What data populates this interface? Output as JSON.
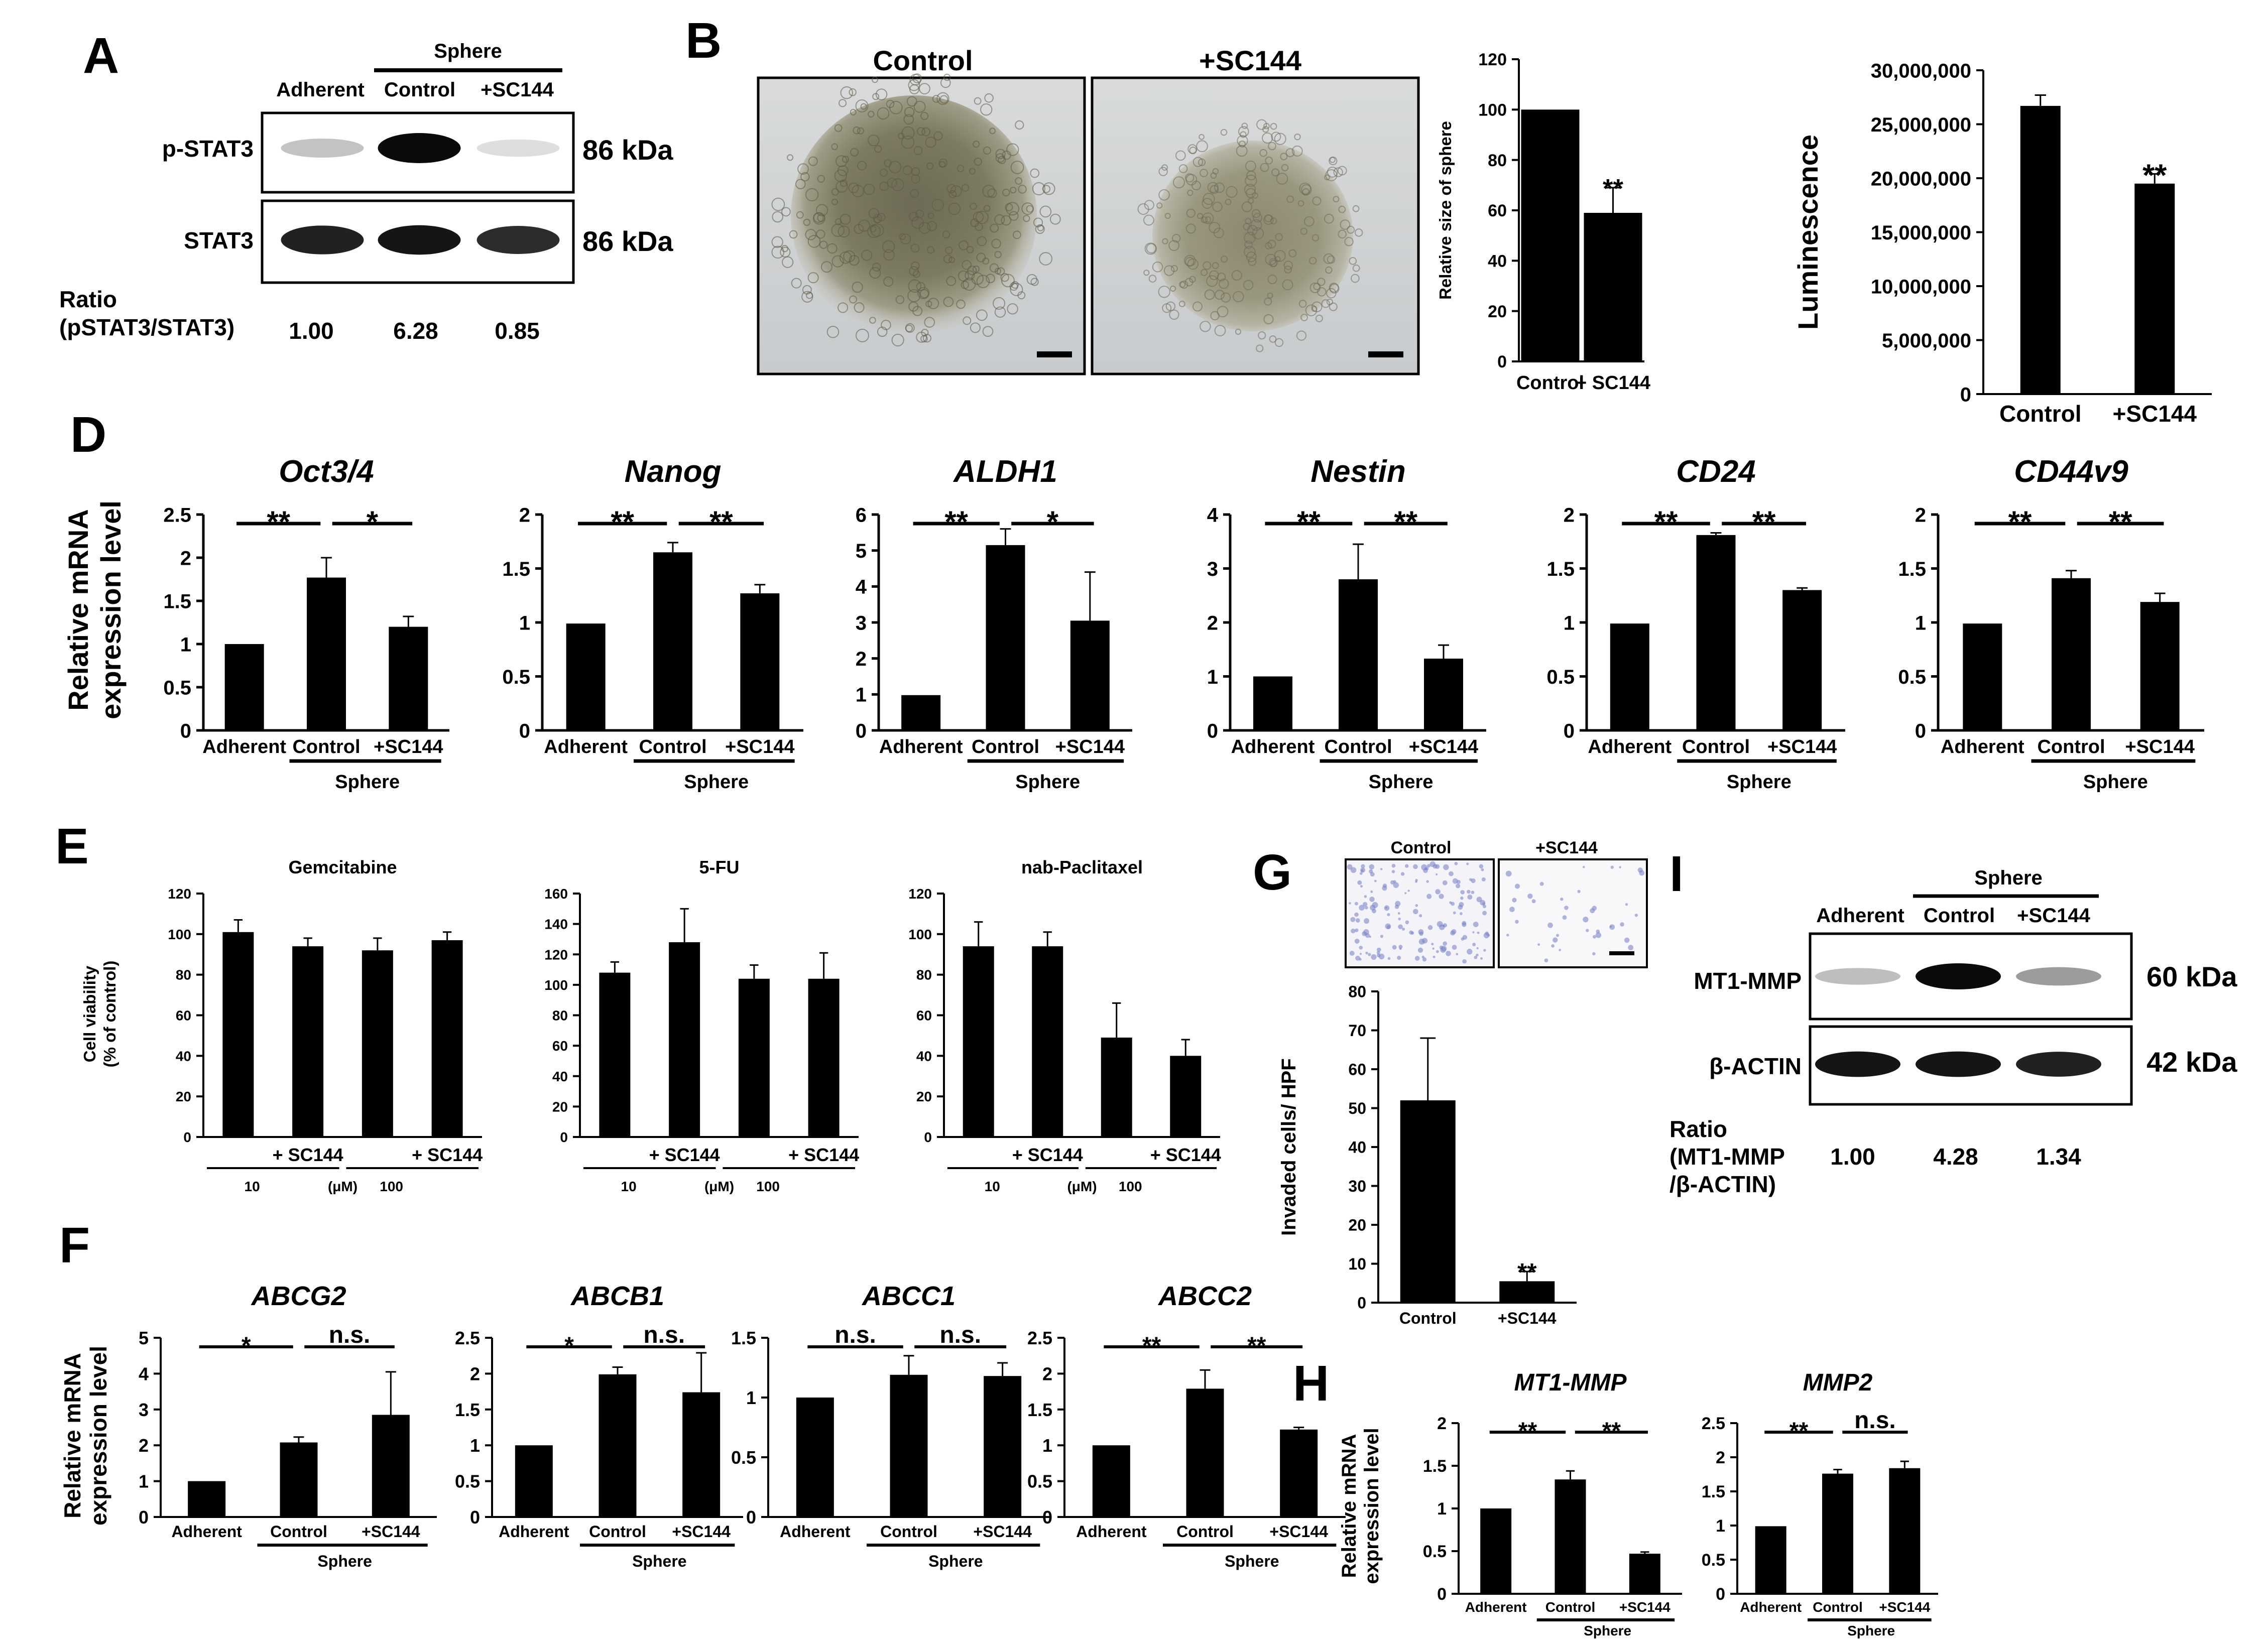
{
  "figure": {
    "panels": {
      "A": {
        "letter": "A",
        "group_label": "Sphere",
        "lanes": [
          "Adherent",
          "Control",
          "+SC144"
        ],
        "rows": [
          {
            "label": "p-STAT3",
            "size": "86 kDa",
            "intensity": [
              0.18,
              1.0,
              0.06
            ]
          },
          {
            "label": "STAT3",
            "size": "86 kDa",
            "intensity": [
              0.9,
              0.95,
              0.85
            ]
          }
        ],
        "ratio_label": "Ratio",
        "ratio_sub": "(pSTAT3/STAT3)",
        "ratio_values": [
          "1.00",
          "6.28",
          "0.85"
        ]
      },
      "B": {
        "letter": "B",
        "image_titles": [
          "Control",
          "+SC144"
        ],
        "image_names": [
          "control-sphere-micrograph",
          "sc144-sphere-micrograph"
        ]
      },
      "G": {
        "letter": "G",
        "image_titles": [
          "Control",
          "+SC144"
        ],
        "image_names": [
          "control-invasion-micrograph",
          "sc144-invasion-micrograph"
        ]
      },
      "I": {
        "letter": "I",
        "group_label": "Sphere",
        "lanes": [
          "Adherent",
          "Control",
          "+SC144"
        ],
        "rows": [
          {
            "label": "MT1-MMP",
            "size": "60 kDa",
            "intensity": [
              0.2,
              1.0,
              0.35
            ]
          },
          {
            "label": "β-ACTIN",
            "size": "42 kDa",
            "intensity": [
              0.95,
              0.95,
              0.9
            ]
          }
        ],
        "ratio_label": "Ratio",
        "ratio_sub1": "(MT1-MMP",
        "ratio_sub2": "/β-ACTIN)",
        "ratio_values": [
          "1.00",
          "4.28",
          "1.34"
        ]
      },
      "D": {
        "letter": "D",
        "ylabel1": "Relative mRNA",
        "ylabel2": "expression level"
      },
      "E": {
        "letter": "E",
        "ylabel1": "Cell viability",
        "ylabel2": "(% of control)"
      },
      "F": {
        "letter": "F",
        "ylabel1": "Relative mRNA",
        "ylabel2": "expression level"
      },
      "H": {
        "letter": "H",
        "ylabel1": "Relative mRNA",
        "ylabel2": "expression level"
      }
    }
  },
  "chart_data": [
    {
      "id": "B",
      "type": "bar",
      "categories": [
        "Control",
        "+ SC144"
      ],
      "values": [
        100,
        59
      ],
      "errors": [
        0,
        10
      ],
      "ylim": [
        0,
        120
      ],
      "yticks": [
        0,
        20,
        40,
        60,
        80,
        100,
        120
      ],
      "ylabel": "Relative size of sphere",
      "annotations": [
        "",
        "**"
      ]
    },
    {
      "id": "C",
      "type": "bar",
      "categories": [
        "Control",
        "+SC144"
      ],
      "values": [
        26700000,
        19500000
      ],
      "errors": [
        1000000,
        900000
      ],
      "ylim": [
        0,
        30000000
      ],
      "yticks": [
        "0",
        "5,000,000",
        "10,000,000",
        "15,000,000",
        "20,000,000",
        "25,000,000",
        "30,000,000"
      ],
      "ylabel": "Luminescence",
      "annotations": [
        "",
        "**"
      ]
    },
    {
      "id": "D1",
      "type": "bar",
      "title": "Oct3/4",
      "categories": [
        "Adherent",
        "Control",
        "+SC144"
      ],
      "group_label": "Sphere",
      "values": [
        1.0,
        1.77,
        1.2
      ],
      "errors": [
        0,
        0.23,
        0.12
      ],
      "ylim": [
        0,
        2.5
      ],
      "yticks": [
        "0",
        "0.5",
        "1",
        "1.5",
        "2",
        "2.5"
      ],
      "brackets": [
        {
          "from": 0,
          "to": 1,
          "label": "**"
        },
        {
          "from": 1,
          "to": 2,
          "label": "*"
        }
      ]
    },
    {
      "id": "D2",
      "type": "bar",
      "title": "Nanog",
      "categories": [
        "Adherent",
        "Control",
        "+SC144"
      ],
      "group_label": "Sphere",
      "values": [
        0.99,
        1.65,
        1.27
      ],
      "errors": [
        0,
        0.09,
        0.08
      ],
      "ylim": [
        0,
        2
      ],
      "yticks": [
        "0",
        "0.5",
        "1",
        "1.5",
        "2"
      ],
      "brackets": [
        {
          "from": 0,
          "to": 1,
          "label": "**"
        },
        {
          "from": 1,
          "to": 2,
          "label": "**"
        }
      ]
    },
    {
      "id": "D3",
      "type": "bar",
      "title": "ALDH1",
      "categories": [
        "Adherent",
        "Control",
        "+SC144"
      ],
      "group_label": "Sphere",
      "values": [
        0.98,
        5.15,
        3.05
      ],
      "errors": [
        0,
        0.45,
        1.35
      ],
      "ylim": [
        0,
        6
      ],
      "yticks": [
        "0",
        "1",
        "2",
        "3",
        "4",
        "5",
        "6"
      ],
      "brackets": [
        {
          "from": 0,
          "to": 1,
          "label": "**"
        },
        {
          "from": 1,
          "to": 2,
          "label": "*"
        }
      ]
    },
    {
      "id": "D4",
      "type": "bar",
      "title": "Nestin",
      "categories": [
        "Adherent",
        "Control",
        "+SC144"
      ],
      "group_label": "Sphere",
      "values": [
        1.0,
        2.8,
        1.33
      ],
      "errors": [
        0,
        0.65,
        0.25
      ],
      "ylim": [
        0,
        4
      ],
      "yticks": [
        "0",
        "1",
        "2",
        "3",
        "4"
      ],
      "brackets": [
        {
          "from": 0,
          "to": 1,
          "label": "**"
        },
        {
          "from": 1,
          "to": 2,
          "label": "**"
        }
      ]
    },
    {
      "id": "D5",
      "type": "bar",
      "title": "CD24",
      "categories": [
        "Adherent",
        "Control",
        "+SC144"
      ],
      "group_label": "Sphere",
      "values": [
        0.99,
        1.81,
        1.3
      ],
      "errors": [
        0,
        0.02,
        0.02
      ],
      "ylim": [
        0,
        2
      ],
      "yticks": [
        "0",
        "0.5",
        "1",
        "1.5",
        "2"
      ],
      "brackets": [
        {
          "from": 0,
          "to": 1,
          "label": "**"
        },
        {
          "from": 1,
          "to": 2,
          "label": "**"
        }
      ]
    },
    {
      "id": "D6",
      "type": "bar",
      "title": "CD44v9",
      "categories": [
        "Adherent",
        "Control",
        "+SC144"
      ],
      "group_label": "Sphere",
      "values": [
        0.99,
        1.41,
        1.19
      ],
      "errors": [
        0,
        0.07,
        0.08
      ],
      "ylim": [
        0,
        2
      ],
      "yticks": [
        "0",
        "0.5",
        "1",
        "1.5",
        "2"
      ],
      "brackets": [
        {
          "from": 0,
          "to": 1,
          "label": "**"
        },
        {
          "from": 1,
          "to": 2,
          "label": "**"
        }
      ]
    },
    {
      "id": "E1",
      "type": "bar",
      "title": "Gemcitabine",
      "categories": [
        "",
        "+ SC144",
        "",
        "+ SC144"
      ],
      "values": [
        101,
        94,
        92,
        97
      ],
      "errors": [
        6,
        4,
        6,
        4
      ],
      "ylim": [
        0,
        120
      ],
      "yticks": [
        0,
        20,
        40,
        60,
        80,
        100,
        120
      ],
      "doses": [
        "10",
        "100"
      ],
      "dose_unit": "(μM)"
    },
    {
      "id": "E2",
      "type": "bar",
      "title": "5-FU",
      "categories": [
        "",
        "+ SC144",
        "",
        "+ SC144"
      ],
      "values": [
        108,
        128,
        104,
        104
      ],
      "errors": [
        7,
        22,
        9,
        17
      ],
      "ylim": [
        0,
        160
      ],
      "yticks": [
        0,
        20,
        40,
        60,
        80,
        100,
        120,
        140,
        160
      ],
      "doses": [
        "10",
        "100"
      ],
      "dose_unit": "(μM)"
    },
    {
      "id": "E3",
      "type": "bar",
      "title": "nab-Paclitaxel",
      "categories": [
        "",
        "+ SC144",
        "",
        "+ SC144"
      ],
      "values": [
        94,
        94,
        49,
        40
      ],
      "errors": [
        12,
        7,
        17,
        8
      ],
      "ylim": [
        0,
        120
      ],
      "yticks": [
        0,
        20,
        40,
        60,
        80,
        100,
        120
      ],
      "doses": [
        "10",
        "100"
      ],
      "dose_unit": "(μM)"
    },
    {
      "id": "F1",
      "type": "bar",
      "title": "ABCG2",
      "categories": [
        "Adherent",
        "Control",
        "+SC144"
      ],
      "group_label": "Sphere",
      "values": [
        1.0,
        2.08,
        2.85
      ],
      "errors": [
        0,
        0.15,
        1.2
      ],
      "ylim": [
        0,
        5
      ],
      "yticks": [
        "0",
        "1",
        "2",
        "3",
        "4",
        "5"
      ],
      "brackets": [
        {
          "from": 0,
          "to": 1,
          "label": "*"
        },
        {
          "from": 1,
          "to": 2,
          "label": "n.s."
        }
      ]
    },
    {
      "id": "F2",
      "type": "bar",
      "title": "ABCB1",
      "categories": [
        "Adherent",
        "Control",
        "+SC144"
      ],
      "group_label": "Sphere",
      "values": [
        1.0,
        1.99,
        1.74
      ],
      "errors": [
        0,
        0.1,
        0.55
      ],
      "ylim": [
        0,
        2.5
      ],
      "yticks": [
        "0",
        "0.5",
        "1",
        "1.5",
        "2",
        "2.5"
      ],
      "brackets": [
        {
          "from": 0,
          "to": 1,
          "label": "*"
        },
        {
          "from": 1,
          "to": 2,
          "label": "n.s."
        }
      ]
    },
    {
      "id": "F3",
      "type": "bar",
      "title": "ABCC1",
      "categories": [
        "Adherent",
        "Control",
        "+SC144"
      ],
      "group_label": "Sphere",
      "values": [
        1.0,
        1.19,
        1.18
      ],
      "errors": [
        0,
        0.16,
        0.11
      ],
      "ylim": [
        0,
        1.5
      ],
      "yticks": [
        "0",
        "0.5",
        "1",
        "1.5"
      ],
      "brackets": [
        {
          "from": 0,
          "to": 1,
          "label": "n.s."
        },
        {
          "from": 1,
          "to": 2,
          "label": "n.s."
        }
      ]
    },
    {
      "id": "F4",
      "type": "bar",
      "title": "ABCC2",
      "categories": [
        "Adherent",
        "Control",
        "+SC144"
      ],
      "group_label": "Sphere",
      "values": [
        1.0,
        1.79,
        1.22
      ],
      "errors": [
        0,
        0.26,
        0.03
      ],
      "ylim": [
        0,
        2.5
      ],
      "yticks": [
        "0",
        "0.5",
        "1",
        "1.5",
        "2",
        "2.5"
      ],
      "brackets": [
        {
          "from": 0,
          "to": 1,
          "label": "**"
        },
        {
          "from": 1,
          "to": 2,
          "label": "**"
        }
      ]
    },
    {
      "id": "G",
      "type": "bar",
      "categories": [
        "Control",
        "+SC144"
      ],
      "values": [
        52,
        5.5
      ],
      "errors": [
        16,
        2.5
      ],
      "ylim": [
        0,
        80
      ],
      "yticks": [
        0,
        10,
        20,
        30,
        40,
        50,
        60,
        70,
        80
      ],
      "ylabel": "Invaded cells/ HPF",
      "annotations": [
        "",
        "**"
      ]
    },
    {
      "id": "H1",
      "type": "bar",
      "title": "MT1-MMP",
      "categories": [
        "Adherent",
        "Control",
        "+SC144"
      ],
      "group_label": "Sphere",
      "values": [
        1.0,
        1.34,
        0.47
      ],
      "errors": [
        0,
        0.1,
        0.02
      ],
      "ylim": [
        0,
        2
      ],
      "yticks": [
        "0",
        "0.5",
        "1",
        "1.5",
        "2"
      ],
      "brackets": [
        {
          "from": 0,
          "to": 1,
          "label": "**"
        },
        {
          "from": 1,
          "to": 2,
          "label": "**"
        }
      ]
    },
    {
      "id": "H2",
      "type": "bar",
      "title": "MMP2",
      "categories": [
        "Adherent",
        "Control",
        "+SC144"
      ],
      "group_label": "Sphere",
      "values": [
        0.99,
        1.76,
        1.84
      ],
      "errors": [
        0,
        0.06,
        0.1
      ],
      "ylim": [
        0,
        2.5
      ],
      "yticks": [
        "0",
        "0.5",
        "1",
        "1.5",
        "2",
        "2.5"
      ],
      "brackets": [
        {
          "from": 0,
          "to": 1,
          "label": "**"
        },
        {
          "from": 1,
          "to": 2,
          "label": "n.s."
        }
      ]
    }
  ]
}
